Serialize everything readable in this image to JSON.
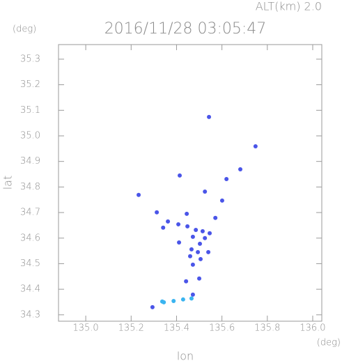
{
  "chart_data": {
    "type": "scatter",
    "title": "2016/11/28 03:05:47",
    "subtitle": "ALT(km) 2.0",
    "y_unit": "(deg)",
    "x_unit": "(deg)",
    "xlabel": "lon",
    "ylabel": "lat",
    "xlim": [
      134.88,
      136.04
    ],
    "ylim": [
      34.275,
      35.357
    ],
    "xticks": [
      {
        "value": 135,
        "label": "135.0"
      },
      135.2,
      135.4,
      135.6,
      135.8,
      {
        "value": 136,
        "label": "136.0"
      }
    ],
    "yticks": [
      34.3,
      34.4,
      34.5,
      34.6,
      34.7,
      34.8,
      34.9,
      {
        "value": 35,
        "label": "35.0"
      },
      35.1,
      35.2,
      35.3
    ],
    "x": [
      135.543,
      135.748,
      135.414,
      135.681,
      135.62,
      135.525,
      135.233,
      135.601,
      135.313,
      135.445,
      135.571,
      135.362,
      135.341,
      135.408,
      135.448,
      135.485,
      135.515,
      135.546,
      135.472,
      135.525,
      135.503,
      135.411,
      135.466,
      135.494,
      135.46,
      135.506,
      135.472,
      135.54,
      135.442,
      135.5,
      135.472,
      135.429,
      135.387,
      135.344,
      135.337,
      135.294,
      135.466
    ],
    "y": [
      35.074,
      34.959,
      34.845,
      34.869,
      34.831,
      34.782,
      34.769,
      34.747,
      34.701,
      34.695,
      34.679,
      34.665,
      34.641,
      34.654,
      34.646,
      34.632,
      34.627,
      34.619,
      34.605,
      34.6,
      34.578,
      34.583,
      34.556,
      34.545,
      34.529,
      34.518,
      34.496,
      34.545,
      34.431,
      34.442,
      34.379,
      34.36,
      34.354,
      34.349,
      34.352,
      34.33,
      34.364
    ],
    "colors": [
      "#4a55e8",
      "#4a55e8",
      "#4a55e8",
      "#4a55e8",
      "#4a55e8",
      "#4a55e8",
      "#4a55e8",
      "#4a55e8",
      "#4a55e8",
      "#4a55e8",
      "#4a55e8",
      "#4a55e8",
      "#4a55e8",
      "#4a55e8",
      "#4a55e8",
      "#4a55e8",
      "#4a55e8",
      "#4a55e8",
      "#4a55e8",
      "#4a55e8",
      "#4a55e8",
      "#4a55e8",
      "#4a55e8",
      "#4a55e8",
      "#4a55e8",
      "#4a55e8",
      "#4a55e8",
      "#4a55e8",
      "#4a55e8",
      "#4a55e8",
      "#4a55e8",
      "#3ab4f0",
      "#3ab4f0",
      "#3ab4f0",
      "#3ab4f0",
      "#4a55e8",
      "#3ab4f0"
    ]
  }
}
